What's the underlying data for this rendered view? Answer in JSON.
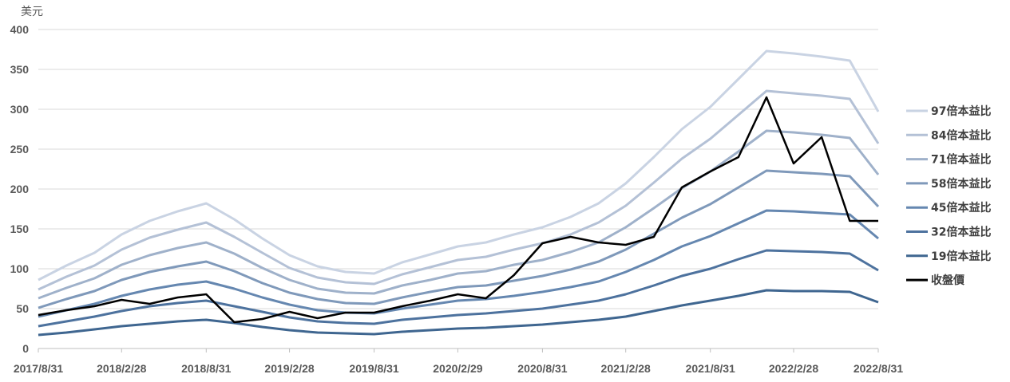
{
  "chart_data": {
    "type": "line",
    "title": "",
    "xlabel": "",
    "ylabel": "美元",
    "ylim": [
      0,
      400
    ],
    "yticks": [
      0,
      50,
      100,
      150,
      200,
      250,
      300,
      350,
      400
    ],
    "grid": true,
    "legend_position": "right",
    "x_tick_labels": [
      "2017/8/31",
      "2018/2/28",
      "2018/8/31",
      "2019/2/28",
      "2019/8/31",
      "2020/2/29",
      "2020/8/31",
      "2021/2/28",
      "2021/8/31",
      "2022/2/28",
      "2022/8/31"
    ],
    "x_dates": [
      "2017/8/31",
      "2017/10/31",
      "2017/12/31",
      "2018/2/28",
      "2018/4/30",
      "2018/6/30",
      "2018/8/31",
      "2018/10/31",
      "2018/12/31",
      "2019/2/28",
      "2019/4/30",
      "2019/6/30",
      "2019/8/31",
      "2019/10/31",
      "2019/12/31",
      "2020/2/29",
      "2020/4/30",
      "2020/6/30",
      "2020/8/31",
      "2020/10/31",
      "2020/12/31",
      "2021/2/28",
      "2021/4/30",
      "2021/6/30",
      "2021/8/31",
      "2021/10/31",
      "2021/12/31",
      "2022/2/28",
      "2022/4/30",
      "2022/6/30",
      "2022/8/31"
    ],
    "series": [
      {
        "name": "97倍本益比",
        "color": "#c9d3e3",
        "values": [
          86,
          104,
          120,
          143,
          160,
          172,
          182,
          162,
          138,
          117,
          103,
          96,
          94,
          108,
          118,
          128,
          133,
          143,
          152,
          165,
          182,
          207,
          240,
          275,
          303,
          338,
          373,
          370,
          366,
          361,
          297
        ]
      },
      {
        "name": "84倍本益比",
        "color": "#b4c1d6",
        "values": [
          74,
          90,
          104,
          124,
          139,
          149,
          158,
          140,
          120,
          101,
          89,
          83,
          81,
          93,
          102,
          111,
          115,
          124,
          132,
          143,
          158,
          179,
          208,
          238,
          263,
          293,
          323,
          320,
          317,
          313,
          257
        ]
      },
      {
        "name": "71倍本益比",
        "color": "#9fb1ca",
        "values": [
          63,
          76,
          88,
          105,
          117,
          126,
          133,
          119,
          101,
          86,
          75,
          70,
          69,
          79,
          86,
          94,
          97,
          105,
          111,
          121,
          133,
          152,
          176,
          201,
          222,
          247,
          273,
          271,
          268,
          264,
          218
        ]
      },
      {
        "name": "58倍本益比",
        "color": "#7f99ba",
        "values": [
          51,
          62,
          72,
          86,
          96,
          103,
          109,
          97,
          82,
          70,
          62,
          57,
          56,
          64,
          71,
          77,
          79,
          85,
          91,
          99,
          109,
          124,
          144,
          164,
          181,
          202,
          223,
          221,
          219,
          216,
          178
        ]
      },
      {
        "name": "45倍本益比",
        "color": "#6587b0",
        "values": [
          40,
          48,
          56,
          66,
          74,
          80,
          84,
          75,
          64,
          55,
          48,
          45,
          44,
          50,
          55,
          60,
          62,
          66,
          71,
          77,
          84,
          96,
          111,
          128,
          141,
          157,
          173,
          172,
          170,
          168,
          138
        ]
      },
      {
        "name": "32倍本益比",
        "color": "#4d729e",
        "values": [
          28,
          34,
          40,
          47,
          53,
          57,
          60,
          53,
          46,
          39,
          34,
          32,
          31,
          36,
          39,
          42,
          44,
          47,
          50,
          55,
          60,
          68,
          79,
          91,
          100,
          112,
          123,
          122,
          121,
          119,
          98
        ]
      },
      {
        "name": "19倍本益比",
        "color": "#3f6690",
        "values": [
          17,
          20,
          24,
          28,
          31,
          34,
          36,
          32,
          27,
          23,
          20,
          19,
          18,
          21,
          23,
          25,
          26,
          28,
          30,
          33,
          36,
          40,
          47,
          54,
          60,
          66,
          73,
          72,
          72,
          71,
          58
        ]
      },
      {
        "name": "收盤價",
        "color": "#000000",
        "values": [
          42,
          48,
          53,
          61,
          56,
          64,
          68,
          33,
          37,
          46,
          38,
          45,
          45,
          53,
          60,
          68,
          63,
          92,
          132,
          140,
          133,
          130,
          140,
          202,
          222,
          240,
          315,
          232,
          265,
          160,
          160
        ]
      }
    ]
  }
}
